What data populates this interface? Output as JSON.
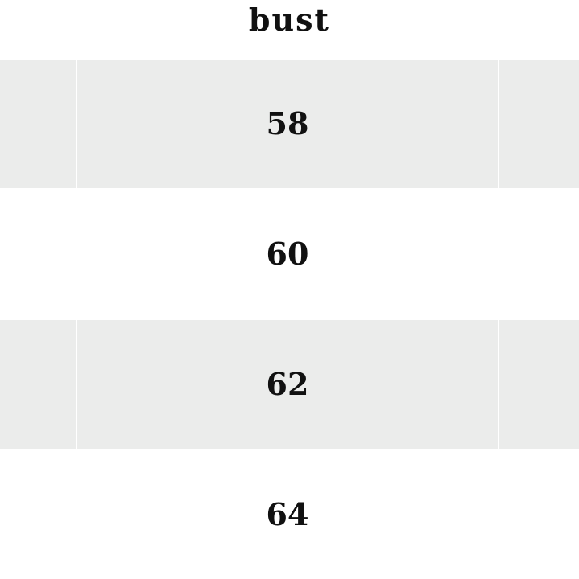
{
  "table": {
    "header": "bust",
    "rows": [
      "58",
      "60",
      "62",
      "64"
    ]
  }
}
